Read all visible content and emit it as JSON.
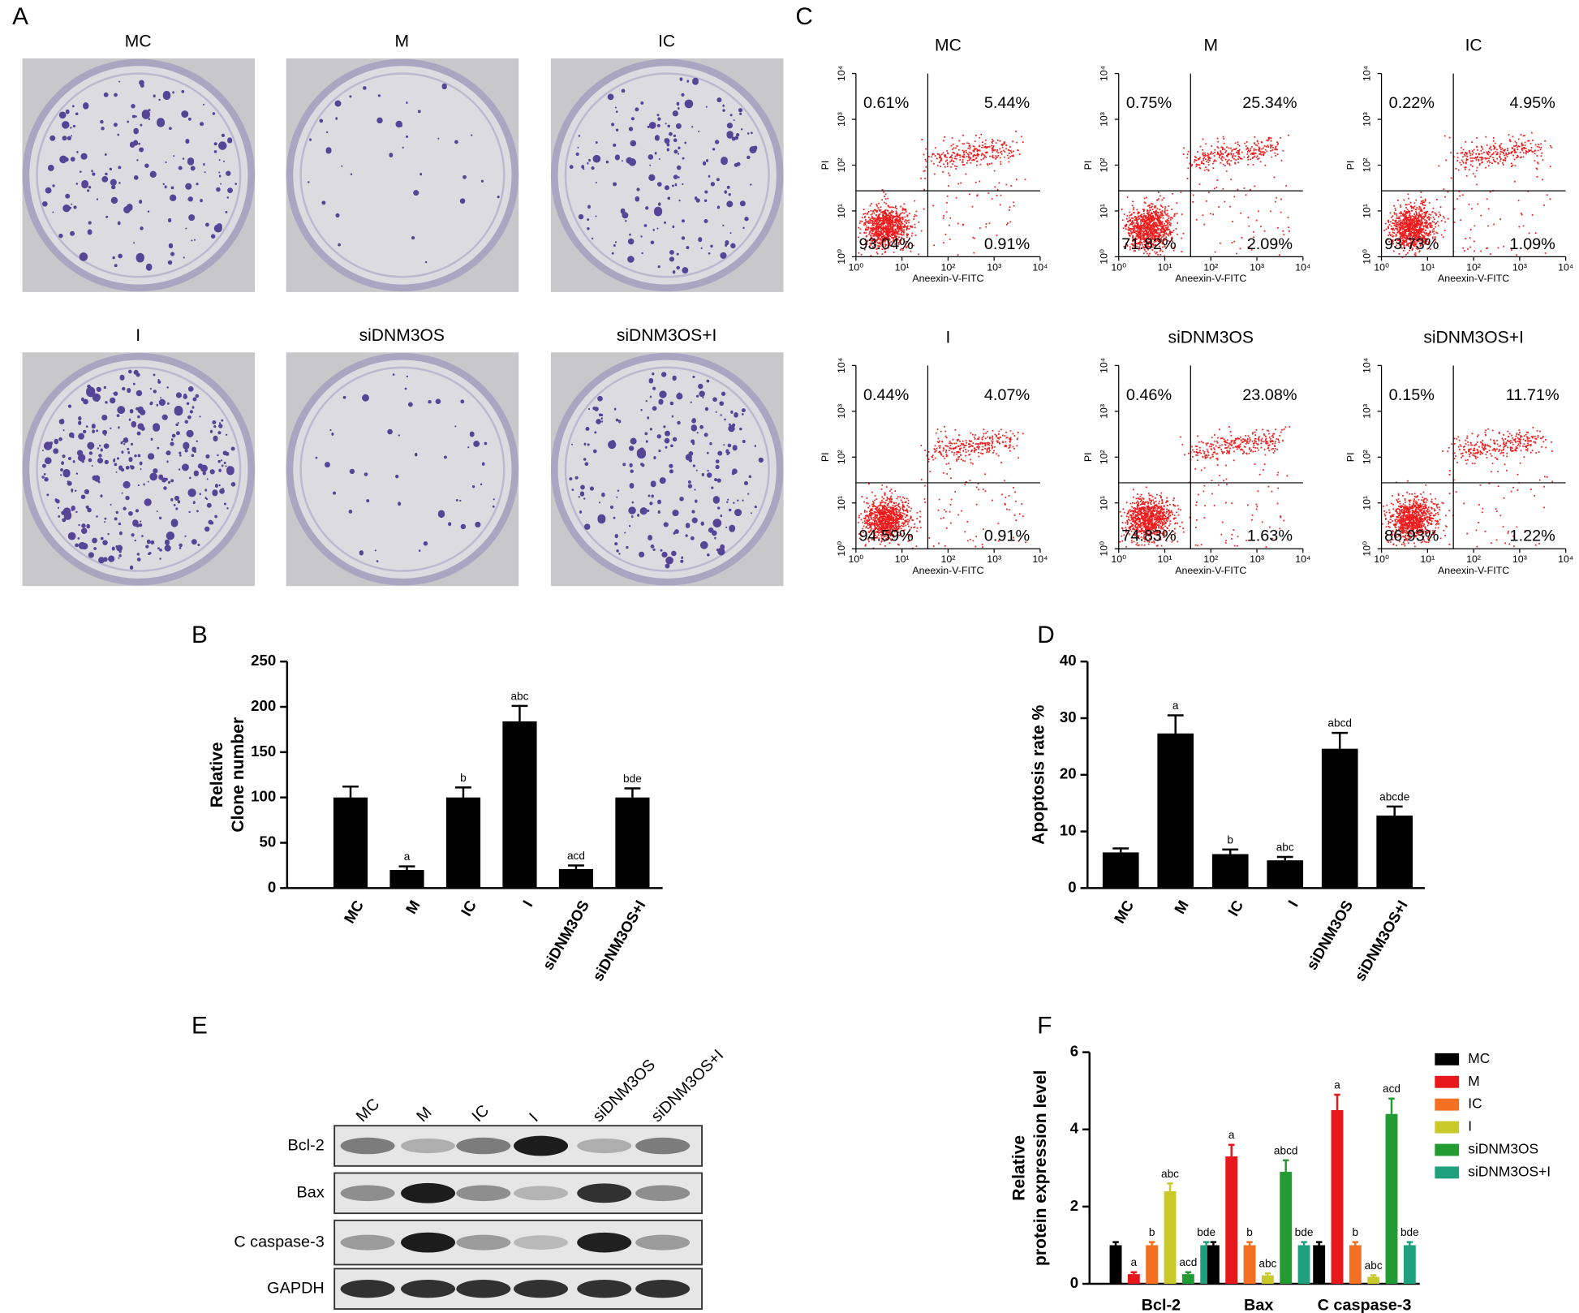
{
  "panel_labels": [
    "A",
    "B",
    "C",
    "D",
    "E",
    "F"
  ],
  "colony_assay": {
    "labels": [
      "MC",
      "M",
      "IC",
      "I",
      "siDNM3OS",
      "siDNM3OS+I"
    ]
  },
  "flow_cytometry": {
    "x_label": "Aneexin-V-FITC",
    "y_label": "PI",
    "log_scale": true,
    "xlim": [
      1,
      10000
    ],
    "ylim": [
      1,
      10000
    ],
    "ticks": [
      {
        "value": 1,
        "label": "10⁰"
      },
      {
        "value": 10,
        "label": "10¹"
      },
      {
        "value": 100,
        "label": "10²"
      },
      {
        "value": 1000,
        "label": "10³"
      },
      {
        "value": 10000,
        "label": "10⁴"
      }
    ],
    "plots": [
      {
        "title": "MC",
        "upper_left": "0.61%",
        "upper_right": "5.44%",
        "lower_left": "93.04%",
        "lower_right": "0.91%"
      },
      {
        "title": "M",
        "upper_left": "0.75%",
        "upper_right": "25.34%",
        "lower_left": "71.82%",
        "lower_right": "2.09%"
      },
      {
        "title": "IC",
        "upper_left": "0.22%",
        "upper_right": "4.95%",
        "lower_left": "93.73%",
        "lower_right": "1.09%"
      },
      {
        "title": "I",
        "upper_left": "0.44%",
        "upper_right": "4.07%",
        "lower_left": "94.59%",
        "lower_right": "0.91%"
      },
      {
        "title": "siDNM3OS",
        "upper_left": "0.46%",
        "upper_right": "23.08%",
        "lower_left": "74.83%",
        "lower_right": "1.63%"
      },
      {
        "title": "siDNM3OS+I",
        "upper_left": "0.15%",
        "upper_right": "11.71%",
        "lower_left": "86.93%",
        "lower_right": "1.22%"
      }
    ]
  },
  "chart_data": [
    {
      "type": "bar",
      "y_label": [
        "Relative",
        "Clone number"
      ],
      "categories": [
        "MC",
        "M",
        "IC",
        "I",
        "siDNM3OS",
        "siDNM3OS+I"
      ],
      "values": [
        100,
        20,
        100,
        184,
        21,
        100
      ],
      "errors": [
        12,
        4,
        11,
        17,
        4,
        10
      ],
      "annotations": [
        null,
        "a",
        "b",
        "abc",
        "acd",
        "bde"
      ],
      "color": "#000000",
      "ylim": [
        0,
        250
      ],
      "yticks": [
        0,
        50,
        100,
        150,
        200,
        250
      ]
    },
    {
      "type": "bar",
      "y_label": [
        "Apoptosis rate %"
      ],
      "categories": [
        "MC",
        "M",
        "IC",
        "I",
        "siDNM3OS",
        "siDNM3OS+I"
      ],
      "values": [
        6.3,
        27.3,
        6.0,
        4.9,
        24.6,
        12.8
      ],
      "errors": [
        0.7,
        3.2,
        0.8,
        0.6,
        2.8,
        1.6
      ],
      "annotations": [
        null,
        "a",
        "b",
        "abc",
        "abcd",
        "abcde"
      ],
      "color": "#000000",
      "ylim": [
        0,
        40
      ],
      "yticks": [
        0,
        10,
        20,
        30,
        40
      ]
    },
    {
      "type": "grouped_bar",
      "y_label": [
        "Relative",
        "protein expression level"
      ],
      "categories": [
        "Bcl-2",
        "Bax",
        "C caspase-3"
      ],
      "series": [
        {
          "name": "MC",
          "color": "#000000",
          "values": [
            1.0,
            1.0,
            1.0
          ],
          "errors": [
            0.08,
            0.08,
            0.08
          ],
          "annotations": [
            null,
            null,
            null
          ]
        },
        {
          "name": "M",
          "color": "#e8171b",
          "values": [
            0.25,
            3.3,
            4.5
          ],
          "errors": [
            0.05,
            0.3,
            0.4
          ],
          "annotations": [
            "a",
            "a",
            "a"
          ]
        },
        {
          "name": "IC",
          "color": "#f36f21",
          "values": [
            1.0,
            1.0,
            1.0
          ],
          "errors": [
            0.08,
            0.08,
            0.08
          ],
          "annotations": [
            "b",
            "b",
            "b"
          ]
        },
        {
          "name": "I",
          "color": "#c9c92a",
          "values": [
            2.4,
            0.22,
            0.18
          ],
          "errors": [
            0.2,
            0.05,
            0.04
          ],
          "annotations": [
            "abc",
            "abc",
            "abc"
          ]
        },
        {
          "name": "siDNM3OS",
          "color": "#219b32",
          "values": [
            0.25,
            2.9,
            4.4
          ],
          "errors": [
            0.05,
            0.3,
            0.4
          ],
          "annotations": [
            "acd",
            "abcd",
            "acd"
          ]
        },
        {
          "name": "siDNM3OS+I",
          "color": "#1fa07f",
          "values": [
            1.0,
            1.0,
            1.0
          ],
          "errors": [
            0.08,
            0.08,
            0.08
          ],
          "annotations": [
            "bde",
            "bde",
            "bde"
          ]
        }
      ],
      "ylim": [
        0,
        6
      ],
      "yticks": [
        0,
        2,
        4,
        6
      ],
      "legend": "right"
    }
  ],
  "western_blot": {
    "lanes": [
      "MC",
      "M",
      "IC",
      "I",
      "siDNM3OS",
      "siDNM3OS+I"
    ],
    "proteins": [
      "Bcl-2",
      "Bax",
      "C caspase-3",
      "GAPDH"
    ]
  }
}
